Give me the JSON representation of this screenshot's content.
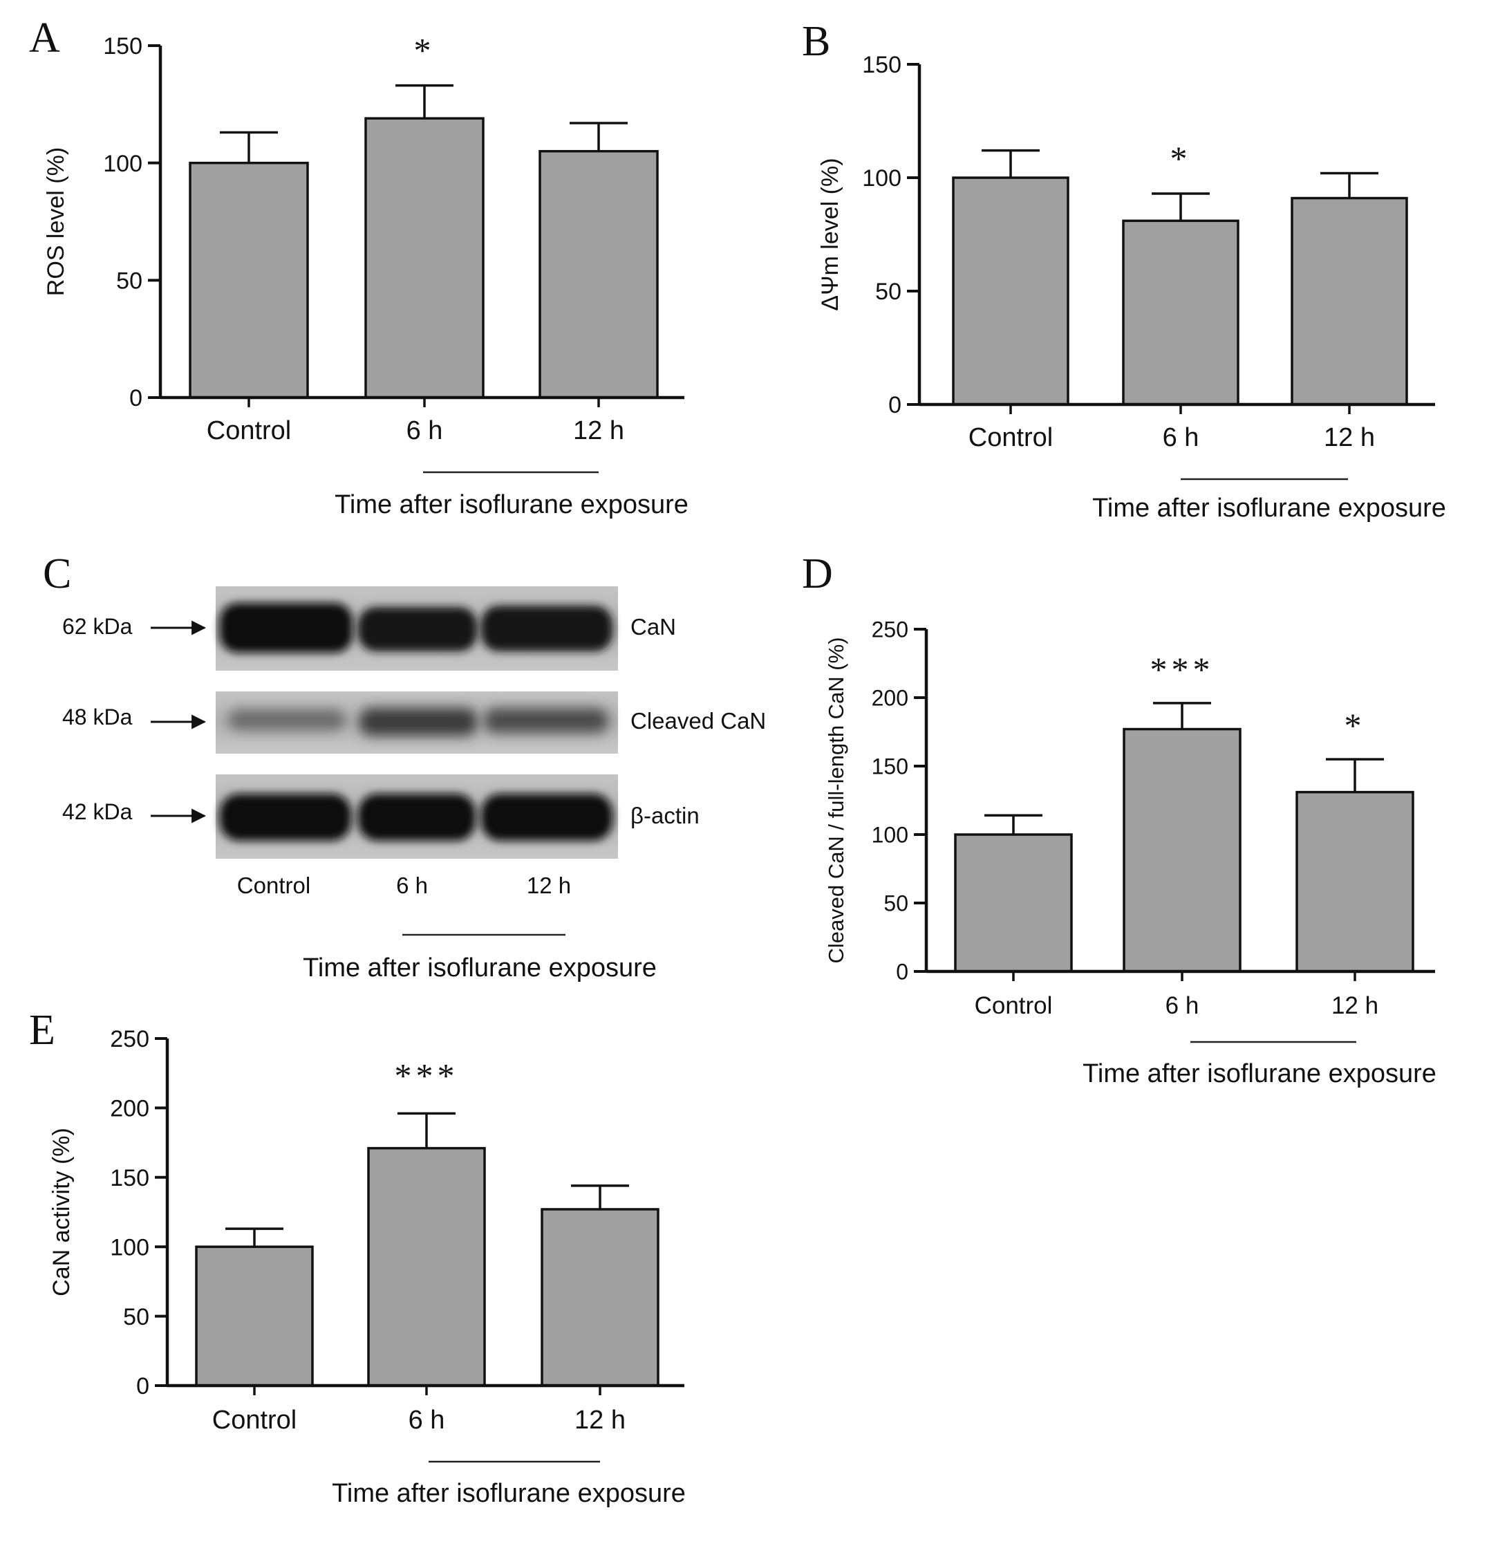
{
  "panels": {
    "A": {
      "letter": "A"
    },
    "B": {
      "letter": "B"
    },
    "C": {
      "letter": "C",
      "lanes": [
        "Control",
        "6 h",
        "12 h"
      ],
      "group_label": "Time after isoflurane exposure",
      "rows": [
        {
          "marker": "62 kDa",
          "label": "CaN"
        },
        {
          "marker": "48 kDa",
          "label": "Cleaved CaN"
        },
        {
          "marker": "42 kDa",
          "label": "β-actin"
        }
      ]
    },
    "D": {
      "letter": "D"
    },
    "E": {
      "letter": "E"
    }
  },
  "chart_data": [
    {
      "panel": "A",
      "type": "bar",
      "categories": [
        "Control",
        "6 h",
        "12 h"
      ],
      "values": [
        100,
        119,
        105
      ],
      "errors": [
        13,
        14,
        12
      ],
      "annotations": [
        "",
        "*",
        ""
      ],
      "ylabel": "ROS level (%)",
      "xlabel": "Time after isoflurane exposure",
      "ylim": [
        0,
        150
      ],
      "yticks": [
        0,
        50,
        100,
        150
      ],
      "bar_color": "#a0a0a0"
    },
    {
      "panel": "B",
      "type": "bar",
      "categories": [
        "Control",
        "6 h",
        "12 h"
      ],
      "values": [
        100,
        81,
        91
      ],
      "errors": [
        12,
        12,
        11
      ],
      "annotations": [
        "",
        "*",
        ""
      ],
      "ylabel": "ΔΨm level (%)",
      "xlabel": "Time after isoflurane exposure",
      "ylim": [
        0,
        150
      ],
      "yticks": [
        0,
        50,
        100,
        150
      ],
      "bar_color": "#a0a0a0"
    },
    {
      "panel": "D",
      "type": "bar",
      "categories": [
        "Control",
        "6 h",
        "12 h"
      ],
      "values": [
        100,
        177,
        131
      ],
      "errors": [
        14,
        19,
        24
      ],
      "annotations": [
        "",
        "***",
        "*"
      ],
      "ylabel": "Cleaved CaN / full-length CaN (%)",
      "xlabel": "Time after isoflurane exposure",
      "ylim": [
        0,
        250
      ],
      "yticks": [
        0,
        50,
        100,
        150,
        200,
        250
      ],
      "bar_color": "#a0a0a0"
    },
    {
      "panel": "E",
      "type": "bar",
      "categories": [
        "Control",
        "6 h",
        "12 h"
      ],
      "values": [
        100,
        171,
        127
      ],
      "errors": [
        13,
        25,
        17
      ],
      "annotations": [
        "",
        "***",
        ""
      ],
      "ylabel": "CaN activity (%)",
      "xlabel": "Time after isoflurane exposure",
      "ylim": [
        0,
        250
      ],
      "yticks": [
        0,
        50,
        100,
        150,
        200,
        250
      ],
      "bar_color": "#a0a0a0"
    }
  ]
}
